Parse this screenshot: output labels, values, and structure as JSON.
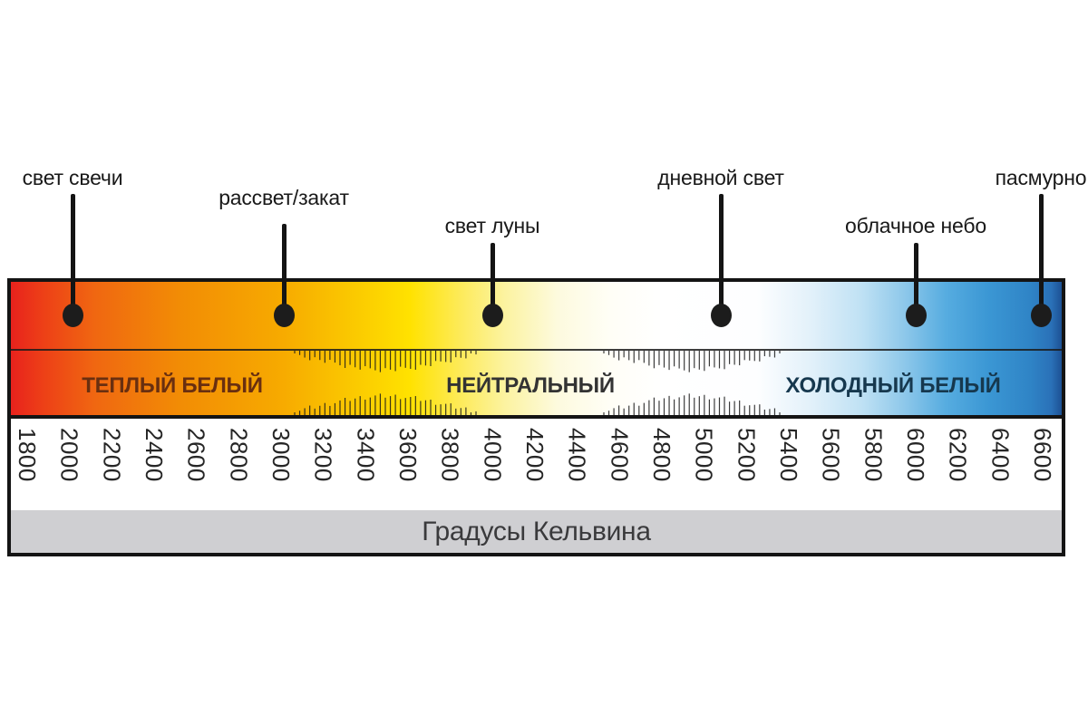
{
  "footer": {
    "label": "Градусы Кельвина"
  },
  "zones": [
    {
      "label": "ТЕПЛЫЙ БЕЛЫЙ"
    },
    {
      "label": "НЕЙТРАЛЬНЫЙ"
    },
    {
      "label": "ХОЛОДНЫЙ БЕЛЫЙ"
    }
  ],
  "chart_data": {
    "type": "scale",
    "axis_label": "Градусы Кельвина",
    "unit": "K",
    "axis_min": 1800,
    "axis_max": 6600,
    "axis_step": 200,
    "axis_ticks": [
      1800,
      2000,
      2200,
      2400,
      2600,
      2800,
      3000,
      3200,
      3400,
      3600,
      3800,
      4000,
      4200,
      4400,
      4600,
      4800,
      5000,
      5200,
      5400,
      5600,
      5800,
      6000,
      6200,
      6400,
      6600
    ],
    "markers": [
      {
        "label": "свет свечи",
        "kelvin": 2000
      },
      {
        "label": "рассвет/закат",
        "kelvin": 3000
      },
      {
        "label": "свет луны",
        "kelvin": 4000
      },
      {
        "label": "дневной свет",
        "kelvin": 5000
      },
      {
        "label": "облачное небо",
        "kelvin": 6000
      },
      {
        "label": "пасмурно",
        "kelvin": 6600
      }
    ],
    "zones": [
      {
        "label": "ТЕПЛЫЙ БЕЛЫЙ",
        "approx_range_k": [
          1800,
          3100
        ]
      },
      {
        "label": "НЕЙТРАЛЬНЫЙ",
        "approx_range_k": [
          3900,
          4600
        ]
      },
      {
        "label": "ХОЛОДНЫЙ БЕЛЫЙ",
        "approx_range_k": [
          5400,
          6600
        ]
      }
    ],
    "transition_hatch_ranges_k": [
      [
        3100,
        3900
      ],
      [
        4600,
        5400
      ]
    ]
  },
  "colors": {
    "marker": "#1c1c1c",
    "pointer_line": "#141414",
    "panel_border": "#141414",
    "hatch": "#1a1a1a",
    "warm_label": "#692f10",
    "neutral_label": "#333333",
    "cold_label": "#16384e",
    "tick_label": "#262626",
    "footer_bg": "#cfcfd2",
    "footer_text": "#3a3a3c",
    "gradient_stops": [
      {
        "p": 0,
        "c": "#e8221d"
      },
      {
        "p": 3,
        "c": "#ed3f17"
      },
      {
        "p": 8,
        "c": "#f06711"
      },
      {
        "p": 16,
        "c": "#f28c05"
      },
      {
        "p": 26,
        "c": "#f7ab00"
      },
      {
        "p": 33,
        "c": "#fbcb00"
      },
      {
        "p": 38,
        "c": "#ffe200"
      },
      {
        "p": 43,
        "c": "#fdeb5e"
      },
      {
        "p": 47,
        "c": "#fcf3a0"
      },
      {
        "p": 52,
        "c": "#fdfade"
      },
      {
        "p": 57,
        "c": "#fffef6"
      },
      {
        "p": 62,
        "c": "#ffffff"
      },
      {
        "p": 71,
        "c": "#fdfeff"
      },
      {
        "p": 76,
        "c": "#e3f1fa"
      },
      {
        "p": 81,
        "c": "#bfe1f4"
      },
      {
        "p": 85,
        "c": "#8ec8ea"
      },
      {
        "p": 89,
        "c": "#56ace0"
      },
      {
        "p": 93,
        "c": "#3b97d4"
      },
      {
        "p": 97,
        "c": "#2f84c6"
      },
      {
        "p": 99,
        "c": "#2a71b8"
      },
      {
        "p": 100,
        "c": "#1d5194"
      }
    ]
  }
}
